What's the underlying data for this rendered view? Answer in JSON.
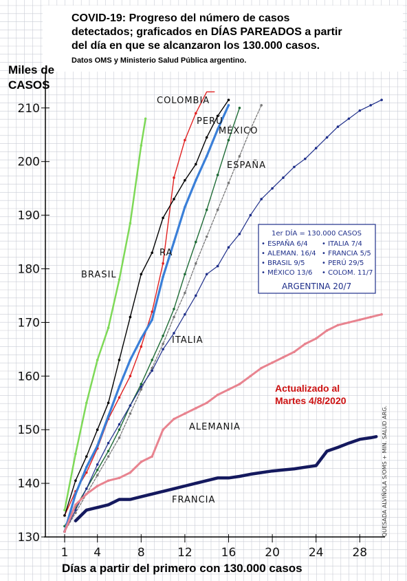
{
  "title": {
    "line1": "COVID-19: Progreso del número de casos",
    "line2": "detectados; graficados en DÍAS PAREADOS a partir",
    "line3": "del día en que se alcanzaron los 130.000 casos.",
    "source": "Datos OMS y Ministerio Salud Pública argentino."
  },
  "ylabel_line1": "Miles de",
  "ylabel_line2": "CASOS",
  "xlabel": "Días a partir del primero con 130.000 casos",
  "update_line1": "Actualizado al",
  "update_line2": "Martes 4/8/2020",
  "credit": "QUESADA ALVIÑOLA S/OMS + MIN. SALUD ARG.",
  "legend_box": {
    "header": "1er DÍA = 130.000 CASOS",
    "rows": [
      [
        "ESPAÑA 6/4",
        "ITALIA 7/4"
      ],
      [
        "ALEMAN. 16/4",
        "FRANCIA 5/5"
      ],
      [
        "BRASIL 9/5",
        "PERÚ 29/5"
      ],
      [
        "MÉXICO 13/6",
        "COLOM. 11/7"
      ]
    ],
    "footer": "ARGENTINA 20/7"
  },
  "colors": {
    "brasil": "#7ed957",
    "colombia": "#e02020",
    "peru": "#000000",
    "mexico": "#1e6b35",
    "argentina": "#3a7fd8",
    "espana": "#777777",
    "italia": "#1f2f8a",
    "alemania": "#e8838f",
    "francia": "#14195e",
    "grid": "#c9ccd6",
    "legend_ink": "#1f2f8a"
  },
  "chart_data": {
    "type": "line",
    "xlabel": "Días a partir del primero con 130.000 casos",
    "ylabel": "Miles de CASOS",
    "xlim": [
      0,
      31
    ],
    "ylim": [
      130,
      213
    ],
    "xticks": [
      1,
      4,
      8,
      12,
      16,
      20,
      24,
      28
    ],
    "yticks": [
      130,
      140,
      150,
      160,
      170,
      180,
      190,
      200,
      210
    ],
    "grid": true,
    "series": [
      {
        "name": "BRASIL",
        "x": [
          1,
          2,
          3,
          4,
          5,
          6,
          7,
          8,
          8.4
        ],
        "y": [
          135,
          145.5,
          155,
          163,
          169,
          178,
          188.5,
          203,
          208
        ]
      },
      {
        "name": "COLOMBIA",
        "x": [
          1,
          2,
          3,
          4,
          5,
          6,
          7,
          8,
          9,
          10,
          11,
          12,
          13,
          14,
          14.7
        ],
        "y": [
          134,
          138.5,
          142,
          146.5,
          152,
          156,
          160,
          165.5,
          172,
          181,
          197,
          204,
          209,
          214,
          220
        ]
      },
      {
        "name": "PERÚ",
        "x": [
          1,
          2,
          3,
          4,
          5,
          6,
          7,
          8,
          9,
          10,
          11,
          12,
          13,
          14,
          15,
          16
        ],
        "y": [
          134,
          140.5,
          145,
          150,
          155,
          163,
          171,
          179,
          183,
          189.5,
          193,
          196.5,
          199.5,
          204.5,
          208.5,
          211.5
        ]
      },
      {
        "name": "MÉXICO",
        "x": [
          1,
          2,
          3,
          4,
          5,
          6,
          7,
          8,
          9,
          10,
          11,
          12,
          13,
          14,
          15,
          16,
          17
        ],
        "y": [
          132,
          135.5,
          139,
          142.5,
          146,
          150,
          154.5,
          158.5,
          163,
          167.5,
          172.5,
          179,
          185,
          191,
          197.5,
          204,
          210
        ]
      },
      {
        "name": "ARGENTINA",
        "x": [
          1,
          2,
          3,
          4,
          5,
          6,
          7,
          8,
          9,
          10,
          11,
          12,
          13,
          14,
          15,
          16
        ],
        "y": [
          131,
          138,
          143,
          147,
          152.5,
          158,
          163,
          167,
          170.5,
          178.5,
          185,
          191.5,
          196.5,
          201,
          206,
          210.5
        ]
      },
      {
        "name": "ESPAÑA",
        "x": [
          1,
          2,
          3,
          4,
          5,
          6,
          7,
          8,
          9,
          10,
          11,
          12,
          13,
          14,
          15,
          16,
          17,
          18,
          19
        ],
        "y": [
          131,
          134.5,
          138,
          141.5,
          145,
          148.5,
          153,
          157.5,
          161.5,
          166,
          171,
          175.5,
          181,
          186,
          191,
          196,
          201,
          206,
          210.5
        ]
      },
      {
        "name": "ITALIA",
        "x": [
          1,
          2,
          3,
          4,
          5,
          6,
          7,
          8,
          9,
          10,
          11,
          12,
          13,
          14,
          15,
          16,
          17,
          18,
          19,
          20,
          21,
          22,
          23,
          24,
          25,
          26,
          27,
          28,
          29,
          30
        ],
        "y": [
          131,
          135,
          139,
          143.5,
          147.5,
          151,
          154.5,
          158,
          161,
          165,
          168,
          171.5,
          175,
          179,
          180.5,
          184,
          186.5,
          190,
          193,
          195,
          197,
          199,
          200.5,
          202.5,
          204.5,
          206.5,
          208,
          209.5,
          210.5,
          211.5
        ]
      },
      {
        "name": "ALEMANIA",
        "x": [
          1,
          2,
          3,
          4,
          5,
          6,
          7,
          8,
          9,
          10,
          11,
          12,
          13,
          14,
          15,
          16,
          17,
          18,
          19,
          20,
          21,
          22,
          23,
          24,
          25,
          26,
          27,
          28,
          29,
          30
        ],
        "y": [
          131,
          136,
          138,
          139.5,
          140.5,
          141,
          142,
          144,
          145,
          150,
          152,
          153,
          154,
          155,
          156.5,
          157.5,
          158.5,
          160,
          161.5,
          162.5,
          163.5,
          164.5,
          166,
          167,
          168.5,
          169.5,
          170,
          170.5,
          171,
          171.5
        ]
      },
      {
        "name": "FRANCIA",
        "x": [
          2,
          3,
          4,
          5,
          6,
          7,
          8,
          9,
          10,
          11,
          12,
          13,
          14,
          15,
          16,
          17,
          18,
          19,
          20,
          21,
          22,
          23,
          24,
          25,
          26,
          27,
          28,
          29,
          29.5
        ],
        "y": [
          133,
          135,
          135.5,
          136,
          137,
          137,
          137.5,
          138,
          138.5,
          139,
          139.5,
          140,
          140.5,
          141,
          141,
          141.3,
          141.7,
          142,
          142.3,
          142.5,
          142.7,
          143,
          143.3,
          146,
          146.7,
          147.5,
          148.2,
          148.5,
          148.7
        ]
      }
    ]
  }
}
